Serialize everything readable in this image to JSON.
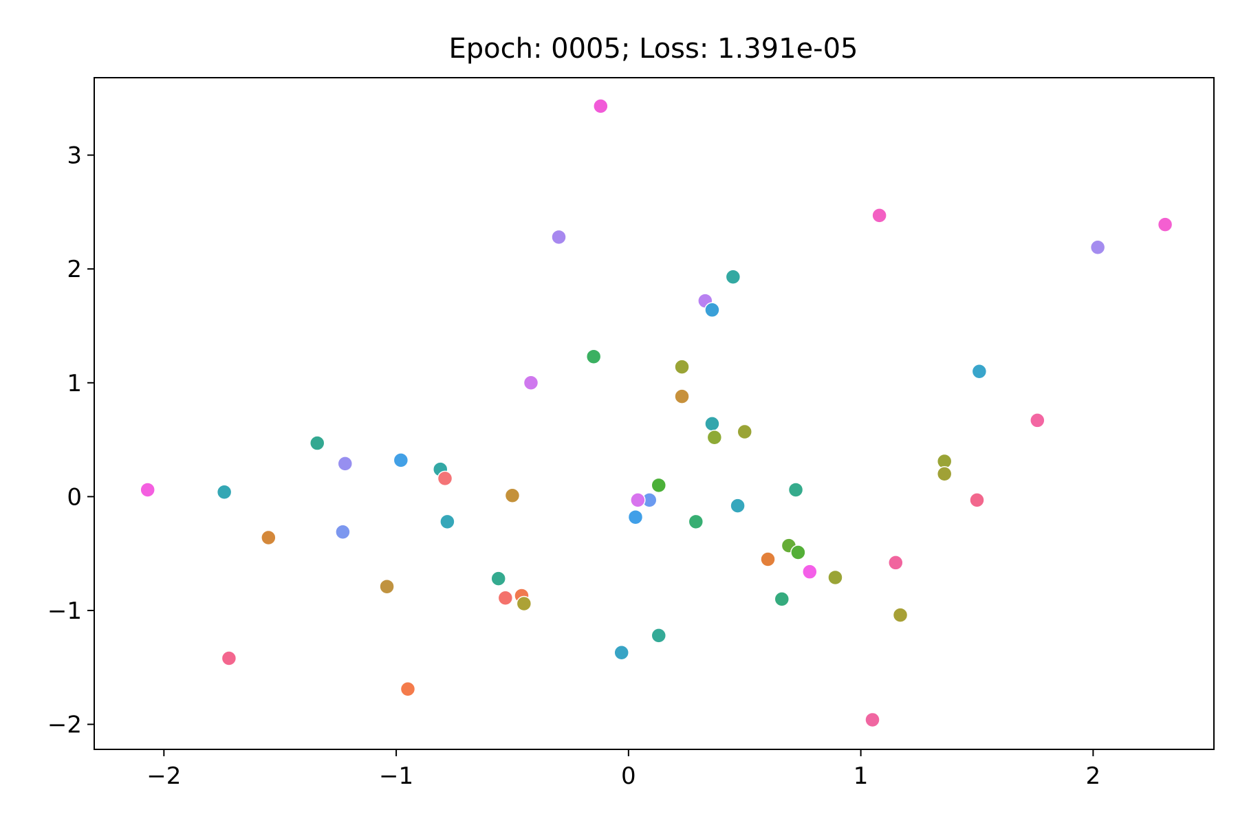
{
  "chart_data": {
    "type": "scatter",
    "title": "Epoch: 0005; Loss: 1.391e-05",
    "xlabel": "",
    "ylabel": "",
    "xlim": [
      -2.3,
      2.52
    ],
    "ylim": [
      -2.22,
      3.68
    ],
    "xticks": [
      {
        "value": -2,
        "label": "−2"
      },
      {
        "value": -1,
        "label": "−1"
      },
      {
        "value": 0,
        "label": "0"
      },
      {
        "value": 1,
        "label": "1"
      },
      {
        "value": 2,
        "label": "2"
      }
    ],
    "yticks": [
      {
        "value": -2,
        "label": "−2"
      },
      {
        "value": -1,
        "label": "−1"
      },
      {
        "value": 0,
        "label": "0"
      },
      {
        "value": 1,
        "label": "1"
      },
      {
        "value": 2,
        "label": "2"
      },
      {
        "value": 3,
        "label": "3"
      }
    ],
    "grid": false,
    "legend": "none",
    "points": [
      {
        "x": -0.12,
        "y": 3.43,
        "color": "#f15ad8"
      },
      {
        "x": 1.08,
        "y": 2.47,
        "color": "#f360c3"
      },
      {
        "x": 2.31,
        "y": 2.39,
        "color": "#f45fd1"
      },
      {
        "x": -0.3,
        "y": 2.28,
        "color": "#a788ef"
      },
      {
        "x": 2.02,
        "y": 2.19,
        "color": "#a48cef"
      },
      {
        "x": 0.45,
        "y": 1.93,
        "color": "#33a9a2"
      },
      {
        "x": 0.33,
        "y": 1.72,
        "color": "#b881f1"
      },
      {
        "x": 0.36,
        "y": 1.64,
        "color": "#3aa0d8"
      },
      {
        "x": -0.15,
        "y": 1.23,
        "color": "#3bb061"
      },
      {
        "x": 0.23,
        "y": 1.14,
        "color": "#9aa436"
      },
      {
        "x": 1.51,
        "y": 1.1,
        "color": "#39a5cb"
      },
      {
        "x": -0.42,
        "y": 1.0,
        "color": "#cf78ee"
      },
      {
        "x": 0.23,
        "y": 0.88,
        "color": "#c7913c"
      },
      {
        "x": 1.76,
        "y": 0.67,
        "color": "#f366a2"
      },
      {
        "x": 0.36,
        "y": 0.64,
        "color": "#33a6ad"
      },
      {
        "x": 0.5,
        "y": 0.57,
        "color": "#9aa436"
      },
      {
        "x": 0.37,
        "y": 0.52,
        "color": "#8eaa36"
      },
      {
        "x": -1.34,
        "y": 0.47,
        "color": "#33a891"
      },
      {
        "x": -0.98,
        "y": 0.32,
        "color": "#42a0e6"
      },
      {
        "x": 1.36,
        "y": 0.31,
        "color": "#9aa436"
      },
      {
        "x": -1.22,
        "y": 0.29,
        "color": "#978ff0"
      },
      {
        "x": -0.81,
        "y": 0.24,
        "color": "#33a8a5"
      },
      {
        "x": 1.36,
        "y": 0.2,
        "color": "#a0a136"
      },
      {
        "x": -0.79,
        "y": 0.16,
        "color": "#f47477"
      },
      {
        "x": 0.13,
        "y": 0.1,
        "color": "#4bb038"
      },
      {
        "x": -2.07,
        "y": 0.06,
        "color": "#f45fe0"
      },
      {
        "x": 0.72,
        "y": 0.06,
        "color": "#35ab8c"
      },
      {
        "x": -1.74,
        "y": 0.04,
        "color": "#34a7b4"
      },
      {
        "x": -0.5,
        "y": 0.01,
        "color": "#c4913a"
      },
      {
        "x": 0.09,
        "y": -0.03,
        "color": "#6b9af0"
      },
      {
        "x": 0.04,
        "y": -0.03,
        "color": "#d873ee"
      },
      {
        "x": 1.5,
        "y": -0.03,
        "color": "#f2678d"
      },
      {
        "x": 0.47,
        "y": -0.08,
        "color": "#36a7bd"
      },
      {
        "x": 0.03,
        "y": -0.18,
        "color": "#409fe8"
      },
      {
        "x": -0.78,
        "y": -0.22,
        "color": "#36a7b9"
      },
      {
        "x": 0.29,
        "y": -0.22,
        "color": "#37ae72"
      },
      {
        "x": -1.23,
        "y": -0.31,
        "color": "#7c97ef"
      },
      {
        "x": -1.55,
        "y": -0.36,
        "color": "#d4883a"
      },
      {
        "x": 0.69,
        "y": -0.43,
        "color": "#66ad37"
      },
      {
        "x": 0.73,
        "y": -0.49,
        "color": "#54af38"
      },
      {
        "x": 0.6,
        "y": -0.55,
        "color": "#e3803a"
      },
      {
        "x": 1.15,
        "y": -0.58,
        "color": "#f1649e"
      },
      {
        "x": 0.78,
        "y": -0.66,
        "color": "#f45fe8"
      },
      {
        "x": 0.89,
        "y": -0.71,
        "color": "#9aa436"
      },
      {
        "x": -0.56,
        "y": -0.72,
        "color": "#34aa8f"
      },
      {
        "x": -1.04,
        "y": -0.79,
        "color": "#c09340"
      },
      {
        "x": -0.46,
        "y": -0.87,
        "color": "#f0794f"
      },
      {
        "x": -0.53,
        "y": -0.89,
        "color": "#f4726c"
      },
      {
        "x": 0.66,
        "y": -0.9,
        "color": "#35ab7e"
      },
      {
        "x": -0.45,
        "y": -0.94,
        "color": "#aca236"
      },
      {
        "x": 1.17,
        "y": -1.04,
        "color": "#a7a036"
      },
      {
        "x": 0.13,
        "y": -1.22,
        "color": "#34aa97"
      },
      {
        "x": -0.03,
        "y": -1.37,
        "color": "#38a4c5"
      },
      {
        "x": -1.72,
        "y": -1.42,
        "color": "#f3668e"
      },
      {
        "x": -0.95,
        "y": -1.69,
        "color": "#f47b4b"
      },
      {
        "x": 1.05,
        "y": -1.96,
        "color": "#f066a1"
      }
    ]
  }
}
